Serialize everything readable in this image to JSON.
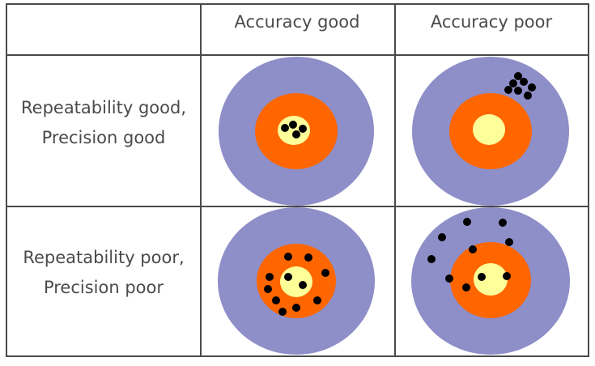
{
  "headers": {
    "accuracy_good": "Accuracy good",
    "accuracy_poor": "Accuracy poor"
  },
  "rows": {
    "row1_line1": "Repeatability good,",
    "row1_line2": "Precision good",
    "row2_line1": "Repeatability poor,",
    "row2_line2": "Precision poor"
  },
  "colors": {
    "outer_ring": "#8e8ec8",
    "middle_ring": "#ff6600",
    "bullseye": "#ffff99",
    "shot": "#000000",
    "grid_line": "#4a4a4a"
  }
}
